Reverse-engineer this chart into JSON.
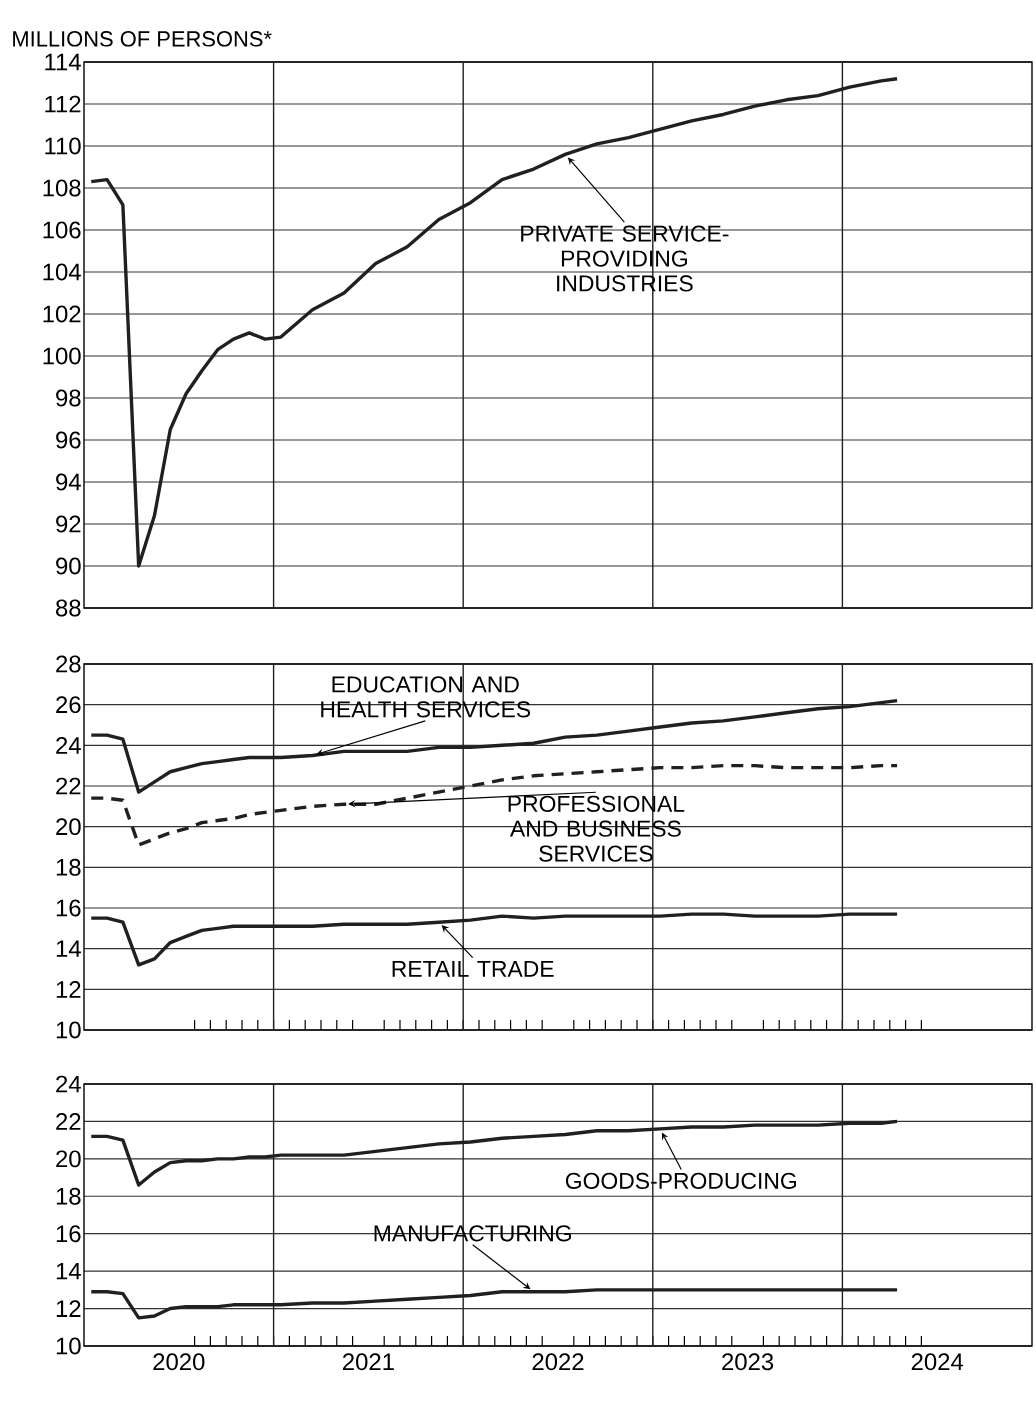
{
  "chart_data": [
    {
      "type": "line",
      "ylabel": "MILLIONS OF PERSONS*",
      "grid": "y",
      "tick_labels": "y",
      "x": [
        "2020-01-15",
        "2020-02-15",
        "2020-03-15",
        "2020-04-15",
        "2020-05-15",
        "2020-06-15",
        "2020-07-15",
        "2020-08-15",
        "2020-09-15",
        "2020-10-15",
        "2020-11-15",
        "2020-12-15",
        "2021-01-15",
        "2021-03-15",
        "2021-05-15",
        "2021-07-15",
        "2021-09-15",
        "2021-11-15",
        "2022-01-15",
        "2022-03-15",
        "2022-05-15",
        "2022-07-15",
        "2022-09-15",
        "2022-11-15",
        "2023-01-15",
        "2023-03-15",
        "2023-05-15",
        "2023-07-15",
        "2023-09-15",
        "2023-11-15",
        "2024-01-15",
        "2024-03-15",
        "2024-04-15"
      ],
      "xlim": [
        "2020-01-01",
        "2025-01-01"
      ],
      "ylim": [
        88,
        114
      ],
      "yticks": [
        88,
        90,
        92,
        94,
        96,
        98,
        100,
        102,
        104,
        106,
        108,
        110,
        112,
        114
      ],
      "ref_lines": [
        {
          "axis": "x",
          "value": "2021-01-01",
          "color": "#231f20"
        },
        {
          "axis": "x",
          "value": "2022-01-01",
          "color": "#231f20"
        },
        {
          "axis": "x",
          "value": "2023-01-01",
          "color": "#231f20"
        },
        {
          "axis": "x",
          "value": "2024-01-01",
          "color": "#231f20"
        }
      ],
      "series": [
        {
          "name": "PRIVATE SERVICE-PROVIDING INDUSTRIES",
          "color": "#231f20",
          "line_style": "solid",
          "values": [
            108.3,
            108.4,
            107.2,
            90.0,
            92.4,
            96.5,
            98.2,
            99.3,
            100.3,
            100.8,
            101.1,
            100.8,
            100.9,
            102.2,
            103.0,
            104.4,
            105.2,
            106.5,
            107.3,
            108.4,
            108.9,
            109.6,
            110.1,
            110.4,
            110.8,
            111.2,
            111.5,
            111.9,
            112.2,
            112.4,
            112.8,
            113.1,
            113.2
          ]
        }
      ]
    },
    {
      "type": "line",
      "grid": "y",
      "tick_labels": "y",
      "x": [
        "2020-01-15",
        "2020-02-15",
        "2020-03-15",
        "2020-04-15",
        "2020-05-15",
        "2020-06-15",
        "2020-07-15",
        "2020-08-15",
        "2020-09-15",
        "2020-10-15",
        "2020-11-15",
        "2020-12-15",
        "2021-01-15",
        "2021-03-15",
        "2021-05-15",
        "2021-07-15",
        "2021-09-15",
        "2021-11-15",
        "2022-01-15",
        "2022-03-15",
        "2022-05-15",
        "2022-07-15",
        "2022-09-15",
        "2022-11-15",
        "2023-01-15",
        "2023-03-15",
        "2023-05-15",
        "2023-07-15",
        "2023-09-15",
        "2023-11-15",
        "2024-01-15",
        "2024-03-15",
        "2024-04-15"
      ],
      "xlim": [
        "2020-01-01",
        "2025-01-01"
      ],
      "xticks": [
        {
          "value": "2020-07-01",
          "label": null
        },
        {
          "value": "2021-07-01",
          "label": null
        },
        {
          "value": "2022-07-01",
          "label": null
        },
        {
          "value": "2023-07-01",
          "label": null
        },
        {
          "value": "2024-07-01",
          "label": null
        }
      ],
      "ylim": [
        10,
        28
      ],
      "yticks": [
        10,
        12,
        14,
        16,
        18,
        20,
        22,
        24,
        26,
        28
      ],
      "ref_lines": [
        {
          "axis": "x",
          "value": "2021-01-01",
          "color": "#231f20"
        },
        {
          "axis": "x",
          "value": "2022-01-01",
          "color": "#231f20"
        },
        {
          "axis": "x",
          "value": "2023-01-01",
          "color": "#231f20"
        },
        {
          "axis": "x",
          "value": "2024-01-01",
          "color": "#231f20"
        }
      ],
      "series": [
        {
          "name": "EDUCATION AND HEALTH SERVICES",
          "color": "#231f20",
          "line_style": "solid",
          "values": [
            24.5,
            24.5,
            24.3,
            21.7,
            22.2,
            22.7,
            22.9,
            23.1,
            23.2,
            23.3,
            23.4,
            23.4,
            23.4,
            23.5,
            23.7,
            23.7,
            23.7,
            23.9,
            23.9,
            24.0,
            24.1,
            24.4,
            24.5,
            24.7,
            24.9,
            25.1,
            25.2,
            25.4,
            25.6,
            25.8,
            25.9,
            26.1,
            26.2
          ]
        },
        {
          "name": "PROFESSIONAL AND BUSINESS SERVICES",
          "color": "#231f20",
          "line_style": "dashed",
          "values": [
            21.4,
            21.4,
            21.3,
            19.1,
            19.4,
            19.7,
            19.9,
            20.2,
            20.3,
            20.4,
            20.6,
            20.7,
            20.8,
            21.0,
            21.1,
            21.1,
            21.4,
            21.7,
            22.0,
            22.3,
            22.5,
            22.6,
            22.7,
            22.8,
            22.9,
            22.9,
            23.0,
            23.0,
            22.9,
            22.9,
            22.9,
            23.0,
            23.0
          ]
        },
        {
          "name": "RETAIL TRADE",
          "color": "#231f20",
          "line_style": "solid",
          "values": [
            15.5,
            15.5,
            15.3,
            13.2,
            13.5,
            14.3,
            14.6,
            14.9,
            15.0,
            15.1,
            15.1,
            15.1,
            15.1,
            15.1,
            15.2,
            15.2,
            15.2,
            15.3,
            15.4,
            15.6,
            15.5,
            15.6,
            15.6,
            15.6,
            15.6,
            15.7,
            15.7,
            15.6,
            15.6,
            15.6,
            15.7,
            15.7,
            15.7
          ]
        }
      ]
    },
    {
      "type": "line",
      "grid": "y",
      "x": [
        "2020-01-15",
        "2020-02-15",
        "2020-03-15",
        "2020-04-15",
        "2020-05-15",
        "2020-06-15",
        "2020-07-15",
        "2020-08-15",
        "2020-09-15",
        "2020-10-15",
        "2020-11-15",
        "2020-12-15",
        "2021-01-15",
        "2021-03-15",
        "2021-05-15",
        "2021-07-15",
        "2021-09-15",
        "2021-11-15",
        "2022-01-15",
        "2022-03-15",
        "2022-05-15",
        "2022-07-15",
        "2022-09-15",
        "2022-11-15",
        "2023-01-15",
        "2023-03-15",
        "2023-05-15",
        "2023-07-15",
        "2023-09-15",
        "2023-11-15",
        "2024-01-15",
        "2024-03-15",
        "2024-04-15"
      ],
      "xlim": [
        "2020-01-01",
        "2025-01-01"
      ],
      "xticks": [
        {
          "value": "2020-07-01",
          "label": "2020"
        },
        {
          "value": "2021-07-01",
          "label": "2021"
        },
        {
          "value": "2022-07-01",
          "label": "2022"
        },
        {
          "value": "2023-07-01",
          "label": "2023"
        },
        {
          "value": "2024-07-01",
          "label": "2024"
        }
      ],
      "ylim": [
        10,
        24
      ],
      "yticks": [
        10,
        12,
        14,
        16,
        18,
        20,
        22,
        24
      ],
      "ref_lines": [
        {
          "axis": "x",
          "value": "2021-01-01",
          "color": "#231f20"
        },
        {
          "axis": "x",
          "value": "2022-01-01",
          "color": "#231f20"
        },
        {
          "axis": "x",
          "value": "2023-01-01",
          "color": "#231f20"
        },
        {
          "axis": "x",
          "value": "2024-01-01",
          "color": "#231f20"
        }
      ],
      "series": [
        {
          "name": "GOODS-PRODUCING",
          "color": "#231f20",
          "line_style": "solid",
          "values": [
            21.2,
            21.2,
            21.0,
            18.6,
            19.3,
            19.8,
            19.9,
            19.9,
            20.0,
            20.0,
            20.1,
            20.1,
            20.2,
            20.2,
            20.2,
            20.4,
            20.6,
            20.8,
            20.9,
            21.1,
            21.2,
            21.3,
            21.5,
            21.5,
            21.6,
            21.7,
            21.7,
            21.8,
            21.8,
            21.8,
            21.9,
            21.9,
            22.0
          ]
        },
        {
          "name": "MANUFACTURING",
          "color": "#231f20",
          "line_style": "solid",
          "values": [
            12.9,
            12.9,
            12.8,
            11.5,
            11.6,
            12.0,
            12.1,
            12.1,
            12.1,
            12.2,
            12.2,
            12.2,
            12.2,
            12.3,
            12.3,
            12.4,
            12.5,
            12.6,
            12.7,
            12.9,
            12.9,
            12.9,
            13.0,
            13.0,
            13.0,
            13.0,
            13.0,
            13.0,
            13.0,
            13.0,
            13.0,
            13.0,
            13.0
          ]
        }
      ]
    }
  ]
}
